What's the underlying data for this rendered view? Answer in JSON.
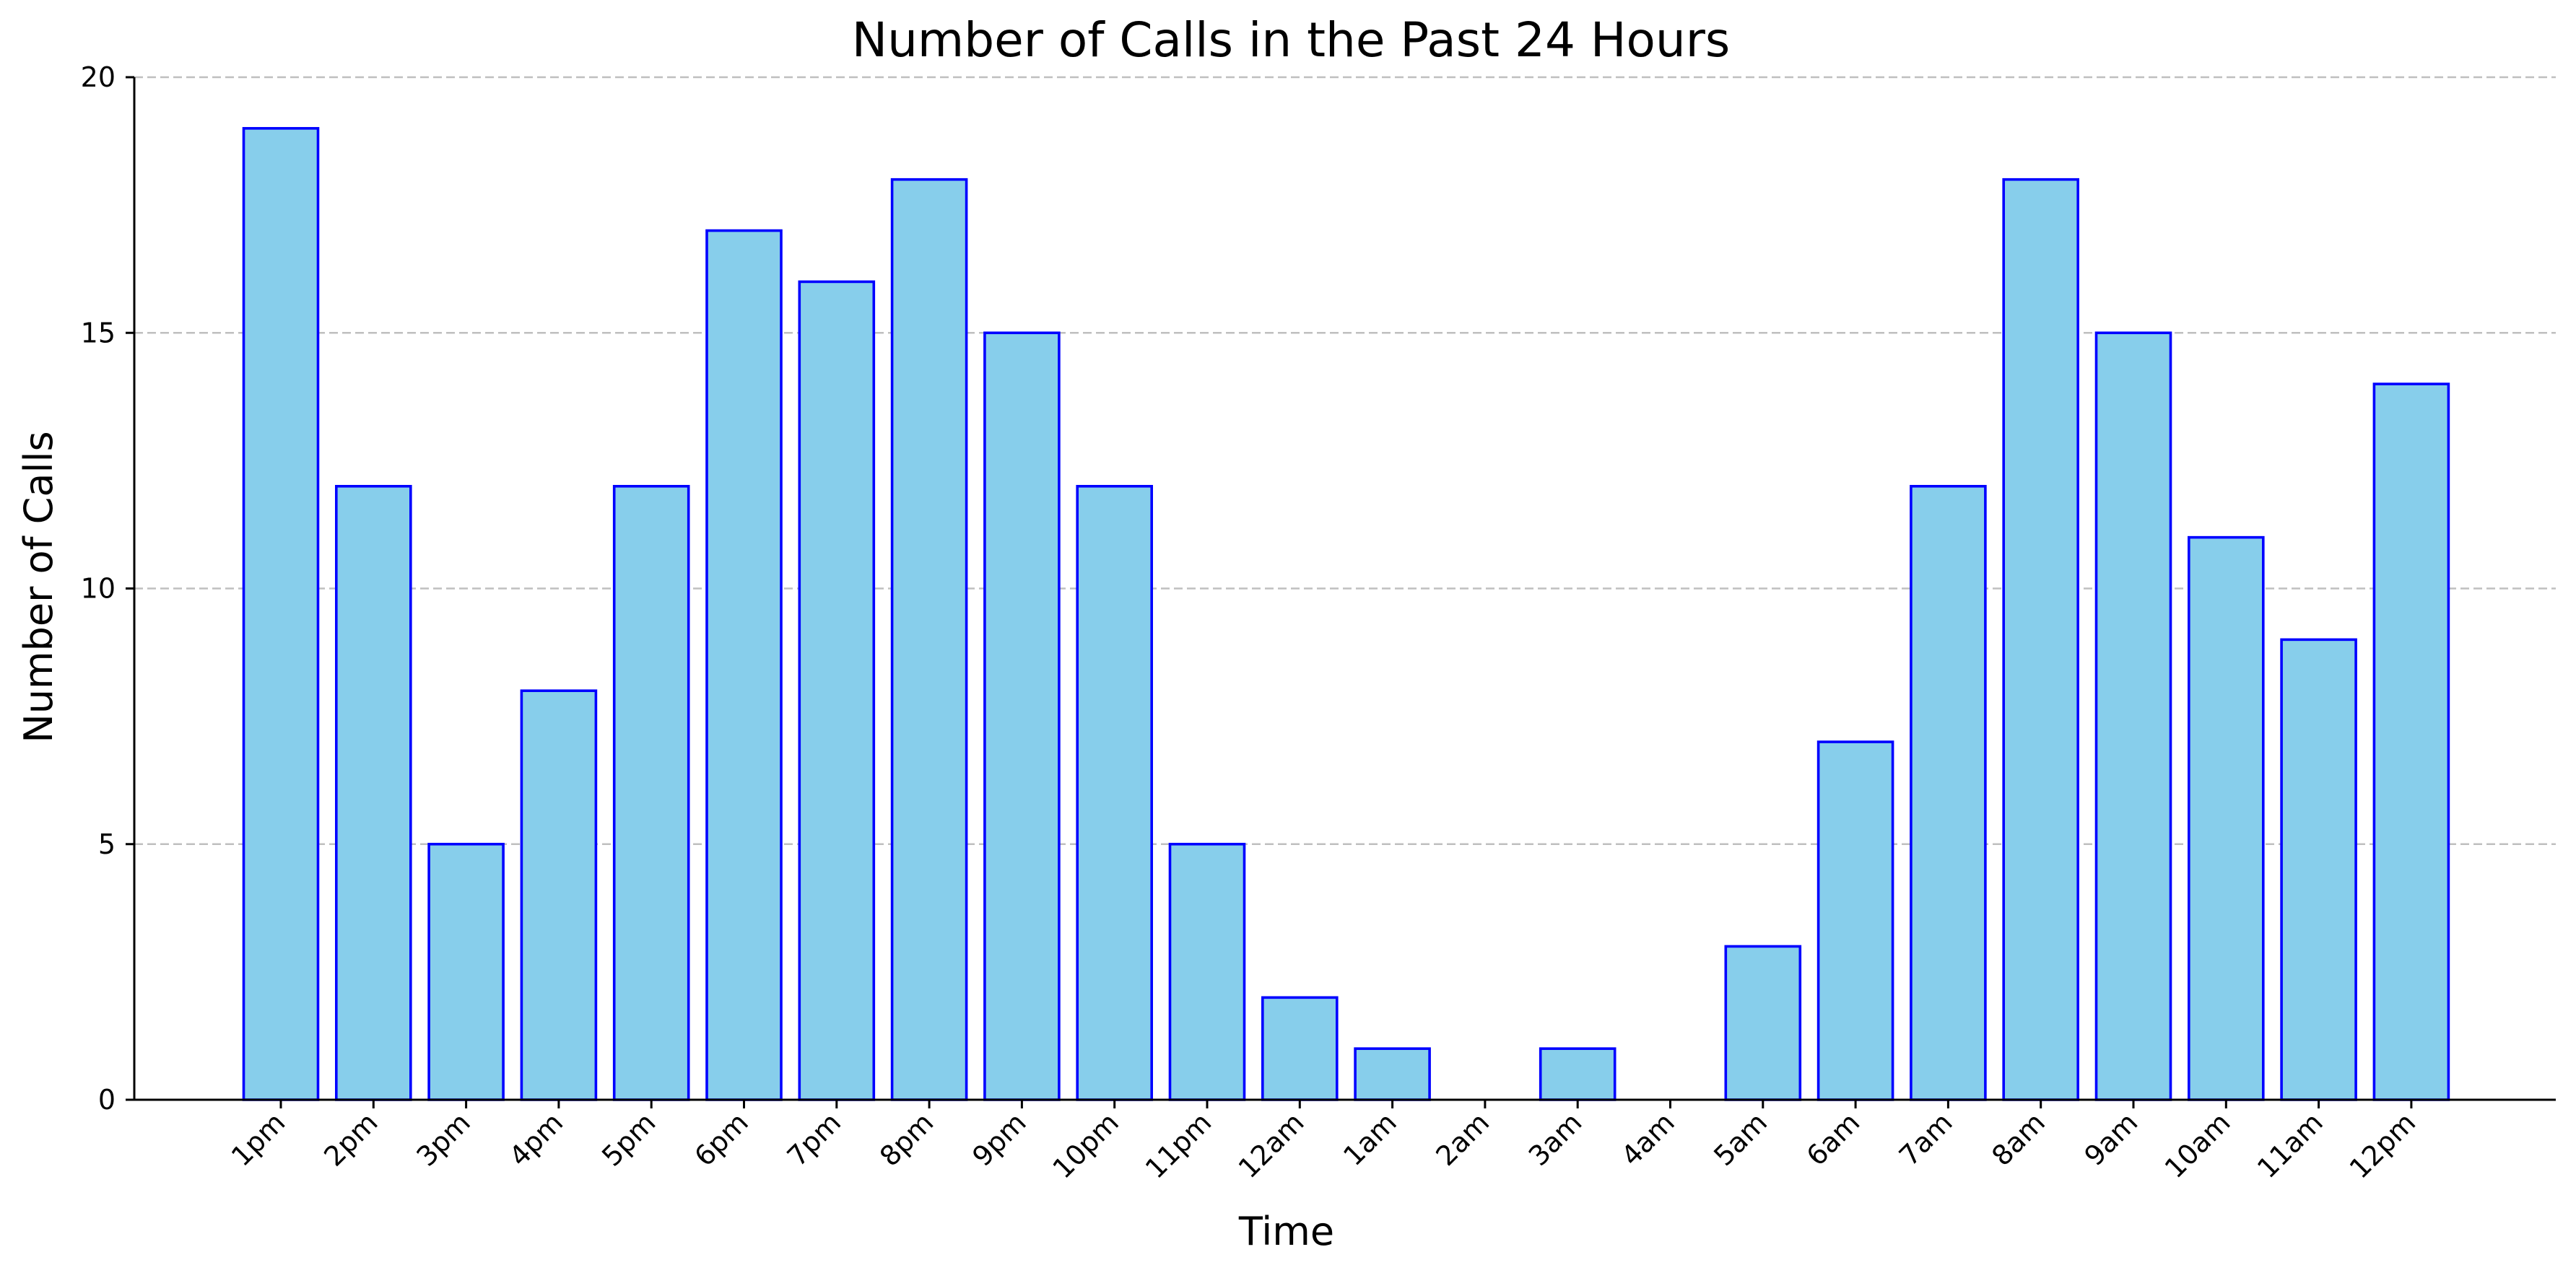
{
  "chart_data": {
    "type": "bar",
    "title": "Number of Calls in the Past 24 Hours",
    "xlabel": "Time",
    "ylabel": "Number of Calls",
    "categories": [
      "1pm",
      "2pm",
      "3pm",
      "4pm",
      "5pm",
      "6pm",
      "7pm",
      "8pm",
      "9pm",
      "10pm",
      "11pm",
      "12am",
      "1am",
      "2am",
      "3am",
      "4am",
      "5am",
      "6am",
      "7am",
      "8am",
      "9am",
      "10am",
      "11am",
      "12pm"
    ],
    "values": [
      19,
      12,
      5,
      8,
      12,
      17,
      16,
      18,
      15,
      12,
      5,
      2,
      1,
      0,
      1,
      0,
      3,
      7,
      12,
      18,
      15,
      11,
      9,
      14
    ],
    "ylim": [
      0,
      20
    ],
    "yticks": [
      0,
      5,
      10,
      15,
      20
    ],
    "grid": "y-dashed",
    "bar_fill_color": "#87CEEB",
    "bar_edge_color": "#0000FF",
    "x_tick_rotation": 45
  }
}
